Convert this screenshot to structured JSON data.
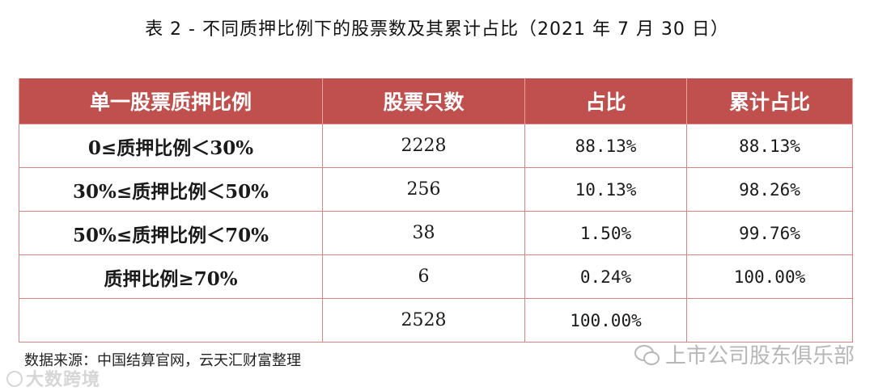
{
  "title": "表 2 -  不同质押比例下的股票数及其累计占比（2021 年 7 月 30 日）",
  "table": {
    "headers": [
      "单一股票质押比例",
      "股票只数",
      "占比",
      "累计占比"
    ],
    "rows": [
      {
        "label": "0≤质押比例＜30%",
        "count": "2228",
        "share": "88.13%",
        "cumulative": "88.13%"
      },
      {
        "label": "30%≤质押比例＜50%",
        "count": "256",
        "share": "10.13%",
        "cumulative": "98.26%"
      },
      {
        "label": "50%≤质押比例＜70%",
        "count": "38",
        "share": "1.50%",
        "cumulative": "99.76%"
      },
      {
        "label": "质押比例≥70%",
        "count": "6",
        "share": "0.24%",
        "cumulative": "100.00%"
      },
      {
        "label": "",
        "count": "2528",
        "share": "100.00%",
        "cumulative": ""
      }
    ]
  },
  "source": "数据来源：中国结算官网，云天汇财富整理",
  "watermark_left": "大数跨境",
  "watermark_right": "上市公司股东俱乐部",
  "colors": {
    "header_bg": "#c0504d",
    "border": "#d9827f"
  }
}
